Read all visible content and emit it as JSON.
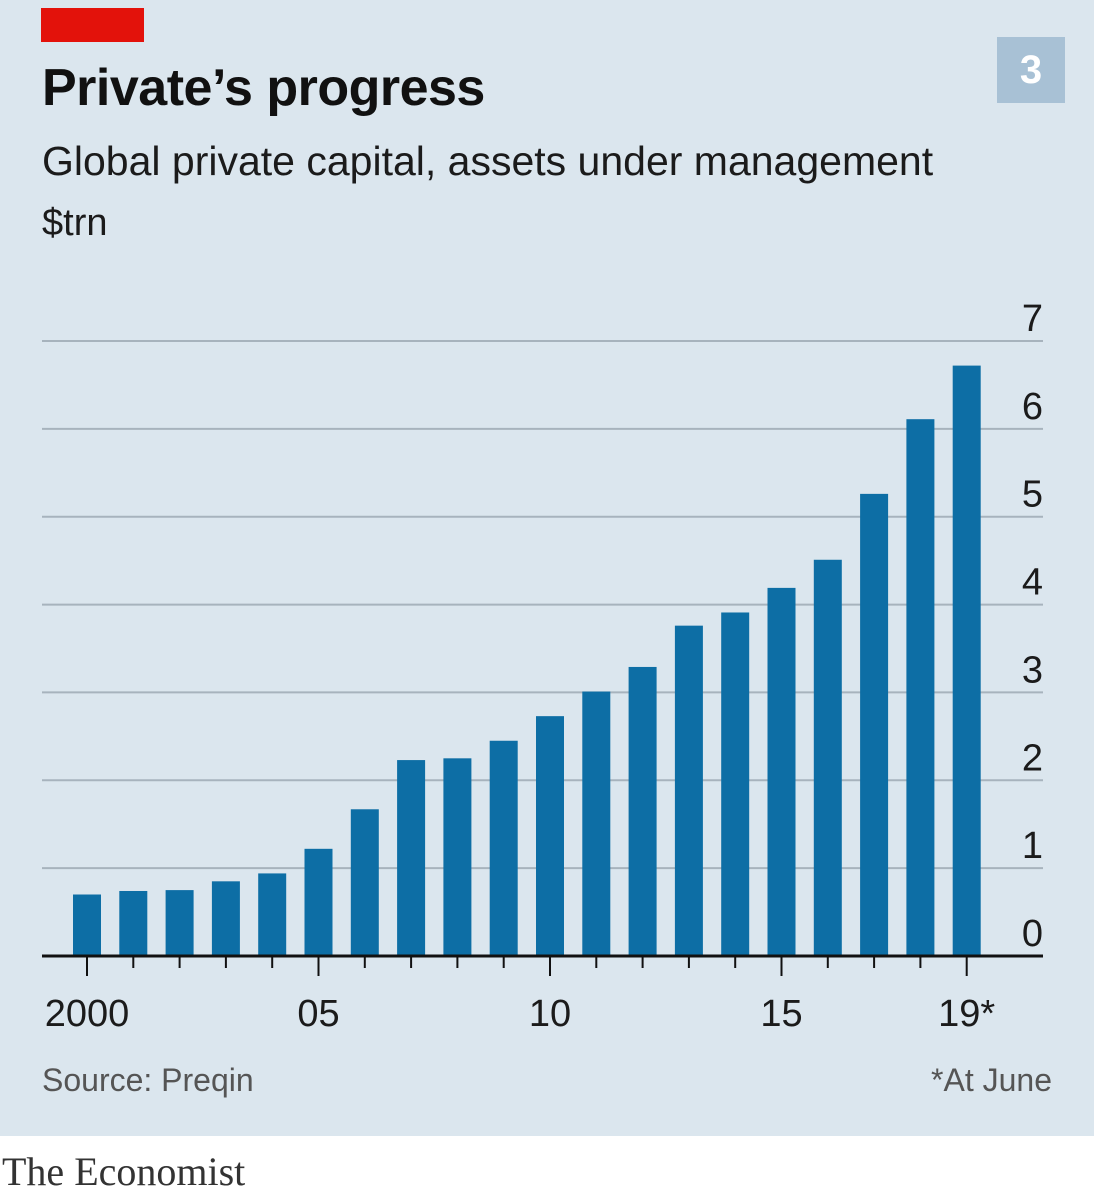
{
  "chart_number": "3",
  "colors": {
    "bar": "#0d6ea5",
    "grid": "#a7b3bd",
    "background": "#dbe6ee",
    "accent": "#e3120b"
  },
  "source": "Source: Preqin",
  "footnote": "*At June",
  "brand": "The Economist",
  "chart_data": {
    "type": "bar",
    "title": "Private’s progress",
    "subtitle": "Global private capital, assets under management",
    "unit": "$trn",
    "categories": [
      "2000",
      "2001",
      "2002",
      "2003",
      "2004",
      "2005",
      "2006",
      "2007",
      "2008",
      "2009",
      "2010",
      "2011",
      "2012",
      "2013",
      "2014",
      "2015",
      "2016",
      "2017",
      "2018",
      "2019*"
    ],
    "x_tick_labels": [
      "2000",
      "05",
      "10",
      "15",
      "19*"
    ],
    "x_tick_label_indices": [
      0,
      5,
      10,
      15,
      19
    ],
    "values": [
      0.7,
      0.74,
      0.75,
      0.85,
      0.94,
      1.22,
      1.67,
      2.23,
      2.25,
      2.45,
      2.73,
      3.01,
      3.29,
      3.76,
      3.91,
      4.19,
      4.51,
      5.26,
      6.11,
      6.72
    ],
    "y_ticks": [
      "0",
      "1",
      "2",
      "3",
      "4",
      "5",
      "6",
      "7"
    ],
    "ylim": [
      0,
      7
    ],
    "grid": true,
    "y_axis_side": "right"
  }
}
